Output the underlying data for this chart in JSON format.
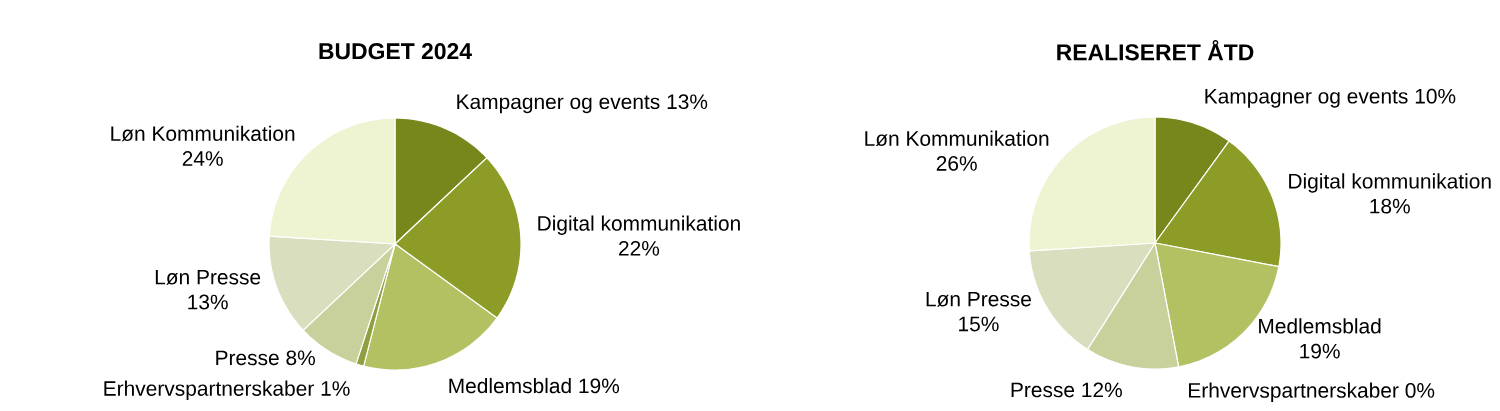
{
  "chart_data": [
    {
      "type": "pie",
      "title": "BUDGET 2024",
      "categories": [
        "Kampagner og events",
        "Digital kommunikation",
        "Medlemsblad",
        "Erhvervspartnerskaber",
        "Presse",
        "Løn Presse",
        "Løn Kommunikation"
      ],
      "values": [
        13,
        22,
        19,
        1,
        8,
        13,
        24
      ],
      "value_labels": [
        "13%",
        "22%",
        "19%",
        "1%",
        "8%",
        "13%",
        "24%"
      ],
      "colors": [
        "#77871c",
        "#8c9c26",
        "#b3c162",
        "#8fa040",
        "#c8d19c",
        "#d9dfbe",
        "#eef3d2"
      ]
    },
    {
      "type": "pie",
      "title": "REALISERET ÅTD",
      "categories": [
        "Kampagner og events",
        "Digital kommunikation",
        "Medlemsblad",
        "Erhvervspartnerskaber",
        "Presse",
        "Løn Presse",
        "Løn Kommunikation"
      ],
      "values": [
        10,
        18,
        19,
        0,
        12,
        15,
        26
      ],
      "value_labels": [
        "10%",
        "18%",
        "19%",
        "0%",
        "12%",
        "15%",
        "26%"
      ],
      "colors": [
        "#77871c",
        "#8c9c26",
        "#b3c162",
        "#8fa040",
        "#c8d19c",
        "#d9dfbe",
        "#eef3d2"
      ]
    }
  ]
}
